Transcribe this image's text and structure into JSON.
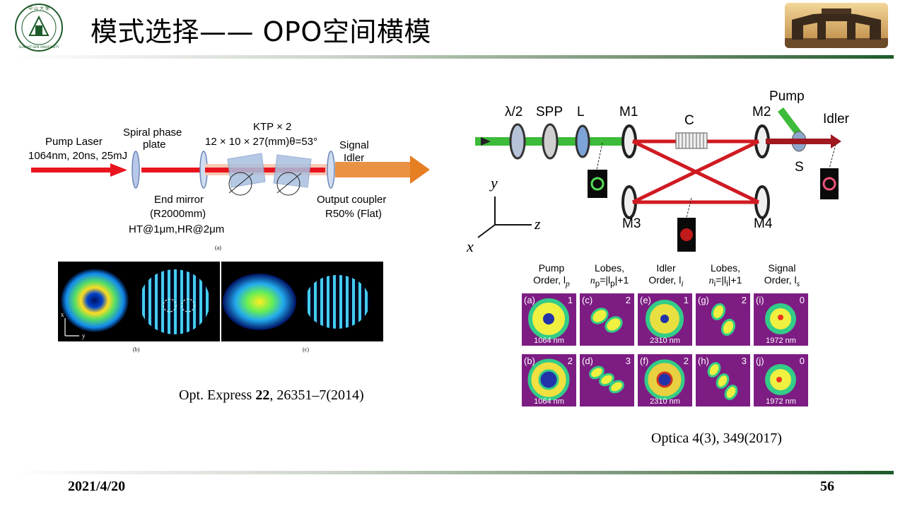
{
  "header": {
    "title": "模式选择—— OPO空间横模"
  },
  "figure_a": {
    "pump_laser": "Pump Laser",
    "pump_params": "1064nm, 20ns, 25mJ",
    "spiral_phase_1": "Spiral phase",
    "spiral_phase_2": "plate",
    "ktp": "KTP × 2",
    "ktp_dims": "12 × 10 × 27(mm)θ=53°",
    "signal": "Signal",
    "idler": "Idler",
    "end_mirror": "End mirror",
    "end_mirror_r": "(R2000mm)",
    "end_mirror_coat": "HT@1μm,HR@2μm",
    "output_coupler": "Output coupler",
    "output_coupler_r": "R50% (Flat)",
    "sub_a": "(a)",
    "sub_b": "(b)",
    "sub_c": "(c)",
    "axis_x": "x",
    "axis_y": "y"
  },
  "citation_left": {
    "prefix": "Opt. Express ",
    "volume": "22",
    "suffix": ", 26351–7(2014)"
  },
  "setup": {
    "half_wave": "λ/2",
    "spp": "SPP",
    "lens": "L",
    "m1": "M1",
    "crystal": "C",
    "m2": "M2",
    "pump": "Pump",
    "idler": "Idler",
    "splitter": "S",
    "m3": "M3",
    "m4": "M4",
    "axis_y": "y",
    "axis_z": "z",
    "axis_x": "x"
  },
  "modes": {
    "headers": [
      [
        "Pump",
        "Order, l",
        "p"
      ],
      [
        "Lobes,",
        "n",
        "p",
        "=|l",
        "p",
        "|+1"
      ],
      [
        "Idler",
        "Order, l",
        "i"
      ],
      [
        "Lobes,",
        "n",
        "i",
        "=|l",
        "i",
        "|+1"
      ],
      [
        "Signal",
        "Order, l",
        "s"
      ]
    ],
    "hdr_pump_1": "Pump",
    "hdr_pump_2": "Order, ",
    "hdr_lobes": "Lobes,",
    "hdr_idler_1": "Idler",
    "hdr_signal_1": "Signal",
    "panels": [
      {
        "label": "(a)",
        "order": "1",
        "wavelength": "1064 nm"
      },
      {
        "label": "(c)",
        "order": "2",
        "wavelength": ""
      },
      {
        "label": "(e)",
        "order": "1",
        "wavelength": "2310 nm"
      },
      {
        "label": "(g)",
        "order": "2",
        "wavelength": ""
      },
      {
        "label": "(i)",
        "order": "0",
        "wavelength": "1972 nm"
      },
      {
        "label": "(b)",
        "order": "2",
        "wavelength": "1064 nm"
      },
      {
        "label": "(d)",
        "order": "3",
        "wavelength": ""
      },
      {
        "label": "(f)",
        "order": "2",
        "wavelength": "2310 nm"
      },
      {
        "label": "(h)",
        "order": "3",
        "wavelength": ""
      },
      {
        "label": "(j)",
        "order": "0",
        "wavelength": "1972 nm"
      }
    ]
  },
  "citation_right": "Optica 4(3), 349(2017)",
  "footer": {
    "date": "2021/4/20",
    "page": "56"
  },
  "colors": {
    "laser_red": "#e8141e",
    "pump_green": "#3dbb3a",
    "output_orange": "#e67e22",
    "panel_bg": "#7d1d83",
    "accent_green": "#1e5b2a"
  }
}
